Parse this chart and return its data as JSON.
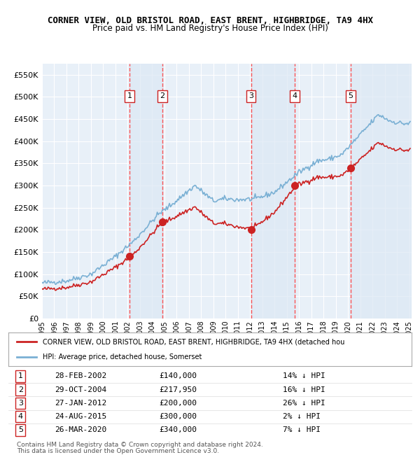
{
  "title": "CORNER VIEW, OLD BRISTOL ROAD, EAST BRENT, HIGHBRIDGE, TA9 4HX",
  "subtitle": "Price paid vs. HM Land Registry's House Price Index (HPI)",
  "background_color": "#ffffff",
  "plot_bg_color": "#e8f0f8",
  "grid_color": "#ffffff",
  "hpi_line_color": "#7ab0d4",
  "price_line_color": "#cc2222",
  "sale_marker_color": "#cc2222",
  "dashed_line_color": "#ff4444",
  "sale_shade_color": "#dce8f5",
  "ylim": [
    0,
    575000
  ],
  "yticks": [
    0,
    50000,
    100000,
    150000,
    200000,
    250000,
    300000,
    350000,
    400000,
    450000,
    500000,
    550000
  ],
  "sales": [
    {
      "num": 1,
      "date": "2002-02-28",
      "price": 140000,
      "pct": "14%",
      "x": 2002.163
    },
    {
      "num": 2,
      "date": "2004-10-29",
      "price": 217950,
      "pct": "16%",
      "x": 2004.829
    },
    {
      "num": 3,
      "date": "2012-01-27",
      "price": 200000,
      "pct": "26%",
      "x": 2012.074
    },
    {
      "num": 4,
      "date": "2015-08-24",
      "price": 300000,
      "pct": "2%",
      "x": 2015.648
    },
    {
      "num": 5,
      "date": "2020-03-26",
      "price": 340000,
      "pct": "7%",
      "x": 2020.233
    }
  ],
  "legend_line1": "CORNER VIEW, OLD BRISTOL ROAD, EAST BRENT, HIGHBRIDGE, TA9 4HX (detached hou",
  "legend_line2": "HPI: Average price, detached house, Somerset",
  "footer_line1": "Contains HM Land Registry data © Crown copyright and database right 2024.",
  "footer_line2": "This data is licensed under the Open Government Licence v3.0.",
  "table_rows": [
    {
      "num": 1,
      "date": "28-FEB-2002",
      "price": "£140,000",
      "pct": "14% ↓ HPI"
    },
    {
      "num": 2,
      "date": "29-OCT-2004",
      "price": "£217,950",
      "pct": "16% ↓ HPI"
    },
    {
      "num": 3,
      "date": "27-JAN-2012",
      "price": "£200,000",
      "pct": "26% ↓ HPI"
    },
    {
      "num": 4,
      "date": "24-AUG-2015",
      "price": "£300,000",
      "pct": "2% ↓ HPI"
    },
    {
      "num": 5,
      "date": "26-MAR-2020",
      "price": "£340,000",
      "pct": "7% ↓ HPI"
    }
  ]
}
